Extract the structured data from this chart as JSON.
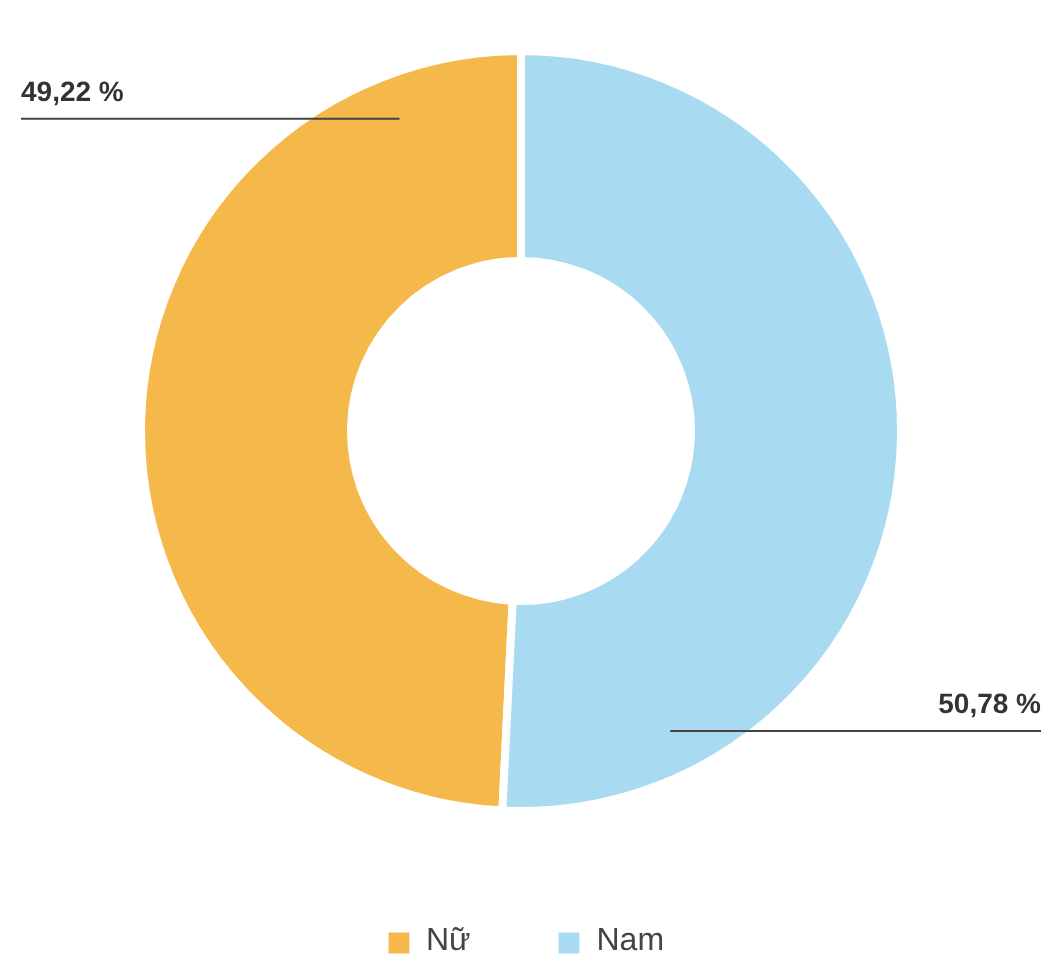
{
  "chart_data": {
    "type": "donut",
    "categories": [
      "Nữ",
      "Nam"
    ],
    "values": [
      49.22,
      50.78
    ],
    "colors": [
      "#f5b84a",
      "#a8daf2"
    ],
    "value_labels": [
      "49,22 %",
      "50,78 %"
    ],
    "legend": "bottom"
  }
}
